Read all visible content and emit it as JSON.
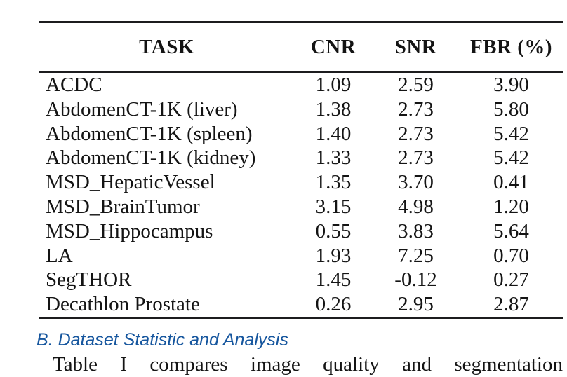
{
  "colors": {
    "heading_blue": "#16569E",
    "text_color": "#141414",
    "rule_color": "#1C1C1E",
    "background": "#ffffff"
  },
  "table": {
    "columns": [
      "TASK",
      "CNR",
      "SNR",
      "FBR (%)"
    ],
    "rows": [
      [
        "ACDC",
        "1.09",
        "2.59",
        "3.90"
      ],
      [
        "AbdomenCT-1K (liver)",
        "1.38",
        "2.73",
        "5.80"
      ],
      [
        "AbdomenCT-1K (spleen)",
        "1.40",
        "2.73",
        "5.42"
      ],
      [
        "AbdomenCT-1K (kidney)",
        "1.33",
        "2.73",
        "5.42"
      ],
      [
        "MSD_HepaticVessel",
        "1.35",
        "3.70",
        "0.41"
      ],
      [
        "MSD_BrainTumor",
        "3.15",
        "4.98",
        "1.20"
      ],
      [
        "MSD_Hippocampus",
        "0.55",
        "3.83",
        "5.64"
      ],
      [
        "LA",
        "1.93",
        "7.25",
        "0.70"
      ],
      [
        "SegTHOR",
        "1.45",
        "-0.12",
        "0.27"
      ],
      [
        "Decathlon Prostate",
        "0.26",
        "2.95",
        "2.87"
      ]
    ]
  },
  "section": {
    "heading": "B. Dataset Statistic and Analysis"
  },
  "body": {
    "first_line": "Table I compares image quality and segmentation"
  }
}
